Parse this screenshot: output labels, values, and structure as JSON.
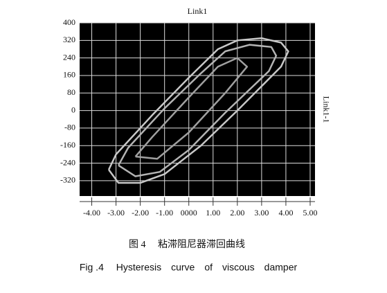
{
  "chart_data": {
    "type": "line",
    "title": "Link1",
    "y2label": "Link1-1",
    "caption_cn": "图 4　 粘滞阻尼器滞回曲线",
    "caption_en": "Fig .4　 Hysteresis　curve　of　viscous　damper",
    "xlim": [
      -4.5,
      5.2
    ],
    "ylim": [
      -390,
      400
    ],
    "xticks": [
      {
        "value": -4,
        "label": "-4.00"
      },
      {
        "value": -3,
        "label": "-3.00"
      },
      {
        "value": -2,
        "label": "-2.00"
      },
      {
        "value": -1,
        "label": "-1.00"
      },
      {
        "value": 0,
        "label": "0000"
      },
      {
        "value": 1,
        "label": "1.00"
      },
      {
        "value": 2,
        "label": "2.00"
      },
      {
        "value": 3,
        "label": "3.00"
      },
      {
        "value": 4,
        "label": "4.00"
      },
      {
        "value": 5,
        "label": "5.00"
      }
    ],
    "yticks": [
      400,
      320,
      240,
      160,
      80,
      0,
      -80,
      -160,
      -240,
      -320
    ],
    "grid": true,
    "series": [
      {
        "color": "#c8c8c8",
        "x": [
          -3.3,
          -3.0,
          -1.5,
          0,
          1.2,
          2.0,
          3.0,
          3.8,
          4.1,
          3.8,
          2.0,
          0.5,
          -1.0,
          -2.0,
          -2.9,
          -3.3
        ],
        "values": [
          -270,
          -200,
          -20,
          150,
          280,
          320,
          330,
          310,
          270,
          200,
          0,
          -160,
          -290,
          -330,
          -330,
          -270
        ]
      },
      {
        "color": "#b4b4b4",
        "x": [
          -2.9,
          -2.5,
          -1.0,
          0.5,
          1.5,
          2.5,
          3.4,
          3.6,
          3.3,
          1.5,
          0,
          -1.2,
          -2.2,
          -2.9
        ],
        "values": [
          -250,
          -170,
          10,
          170,
          270,
          300,
          290,
          250,
          180,
          -10,
          -180,
          -280,
          -300,
          -250
        ]
      },
      {
        "color": "#a0a0a0",
        "x": [
          -2.2,
          -1.5,
          0,
          1.2,
          2.0,
          2.4,
          1.5,
          0,
          -1.3,
          -2.2
        ],
        "values": [
          -210,
          -120,
          60,
          200,
          240,
          200,
          80,
          -100,
          -220,
          -210
        ]
      }
    ]
  }
}
